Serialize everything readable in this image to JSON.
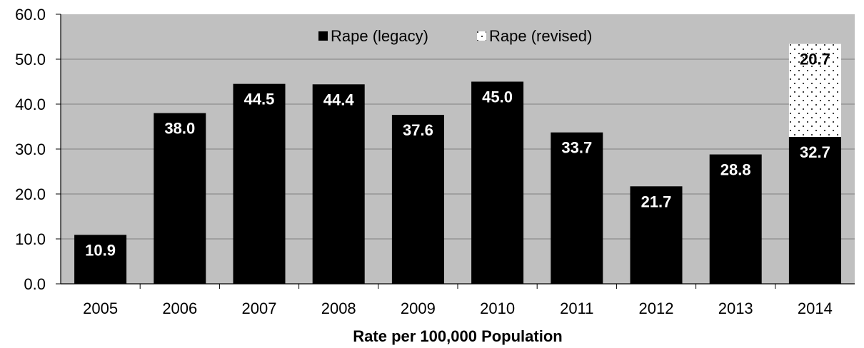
{
  "chart_data": {
    "type": "bar",
    "stacked": true,
    "title": "",
    "xlabel": "Rate per 100,000 Population",
    "ylabel": "",
    "ylim": [
      0,
      60
    ],
    "y_ticks": [
      "0.0",
      "10.0",
      "20.0",
      "30.0",
      "40.0",
      "50.0",
      "60.0"
    ],
    "grid": true,
    "legend_position": "top-center",
    "categories": [
      "2005",
      "2006",
      "2007",
      "2008",
      "2009",
      "2010",
      "2011",
      "2012",
      "2013",
      "2014"
    ],
    "series": [
      {
        "name": "Rape (legacy)",
        "values": [
          10.9,
          38.0,
          44.5,
          44.4,
          37.6,
          45.0,
          33.7,
          21.7,
          28.8,
          32.7
        ],
        "labels": [
          "10.9",
          "38.0",
          "44.5",
          "44.4",
          "37.6",
          "45.0",
          "33.7",
          "21.7",
          "28.8",
          "32.7"
        ],
        "color": "#000000",
        "fill": "solid"
      },
      {
        "name": "Rape (revised)",
        "values": [
          null,
          null,
          null,
          null,
          null,
          null,
          null,
          null,
          null,
          20.7
        ],
        "labels": [
          "",
          "",
          "",
          "",
          "",
          "",
          "",
          "",
          "",
          "20.7"
        ],
        "color": "#ffffff",
        "fill": "dotted"
      }
    ],
    "plot_background": "#c0c0c0"
  }
}
